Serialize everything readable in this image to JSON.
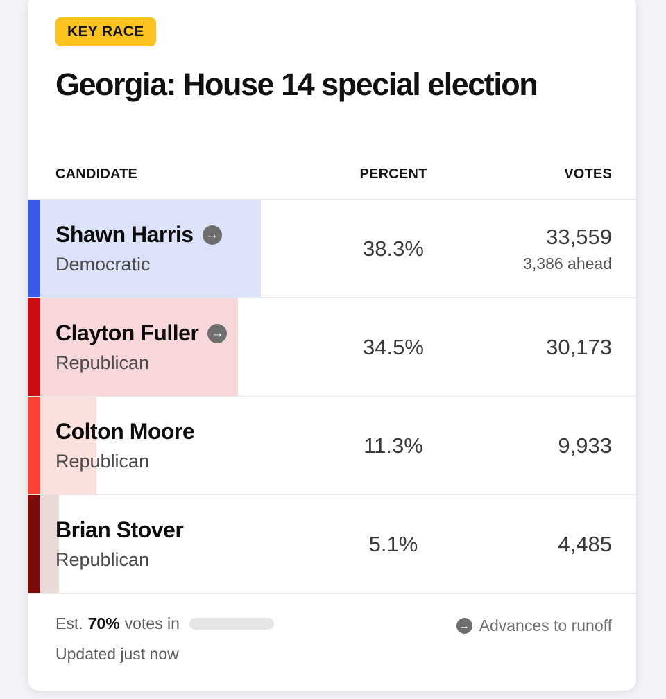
{
  "page": {
    "background_color": "#F3F4F7"
  },
  "badge": {
    "label": "KEY RACE",
    "bg_color": "#FBC31C"
  },
  "title": "Georgia: House 14 special election",
  "icons": {
    "advances_arrow": "→"
  },
  "table": {
    "headers": {
      "candidate": "CANDIDATE",
      "percent": "PERCENT",
      "votes": "VOTES"
    },
    "rows": [
      {
        "name": "Shawn Harris",
        "party": "Democratic",
        "percent": "38.3%",
        "votes": "33,559",
        "note": "3,386 ahead",
        "advances_to_runoff": true,
        "accent_color": "#3C5BE4",
        "highlight_color": "#DCE3F8"
      },
      {
        "name": "Clayton Fuller",
        "party": "Republican",
        "percent": "34.5%",
        "votes": "30,173",
        "advances_to_runoff": true,
        "accent_color": "#CB0E14",
        "highlight_color": "#F8D7DA"
      },
      {
        "name": "Colton Moore",
        "party": "Republican",
        "percent": "11.3%",
        "votes": "9,933",
        "advances_to_runoff": false,
        "accent_color": "#FB4238",
        "highlight_color": "#FBE1DE"
      },
      {
        "name": "Brian Stover",
        "party": "Republican",
        "percent": "5.1%",
        "votes": "4,485",
        "advances_to_runoff": false,
        "accent_color": "#7A0B0B",
        "highlight_color": "#E9DAD7"
      }
    ]
  },
  "footer": {
    "est_label": "Est.",
    "est_value": "70%",
    "votes_in_label": "votes in",
    "updated": "Updated just now",
    "runoff_note": "Advances to runoff"
  },
  "chart_data": {
    "type": "bar",
    "title": "Georgia: House 14 special election",
    "categories": [
      "Shawn Harris (Democratic)",
      "Clayton Fuller (Republican)",
      "Colton Moore (Republican)",
      "Brian Stover (Republican)"
    ],
    "series": [
      {
        "name": "Percent of vote",
        "values": [
          38.3,
          34.5,
          11.3,
          5.1
        ]
      },
      {
        "name": "Votes",
        "values": [
          33559,
          30173,
          9933,
          4485
        ]
      }
    ],
    "bar_axis_range_percent": [
      0,
      100
    ],
    "leader_margin_annotation": "3,386 ahead",
    "estimated_votes_in_percent": 70,
    "status_note": "Advances to runoff",
    "updated_note": "Updated just now",
    "legend_position": "none",
    "grid": false
  }
}
